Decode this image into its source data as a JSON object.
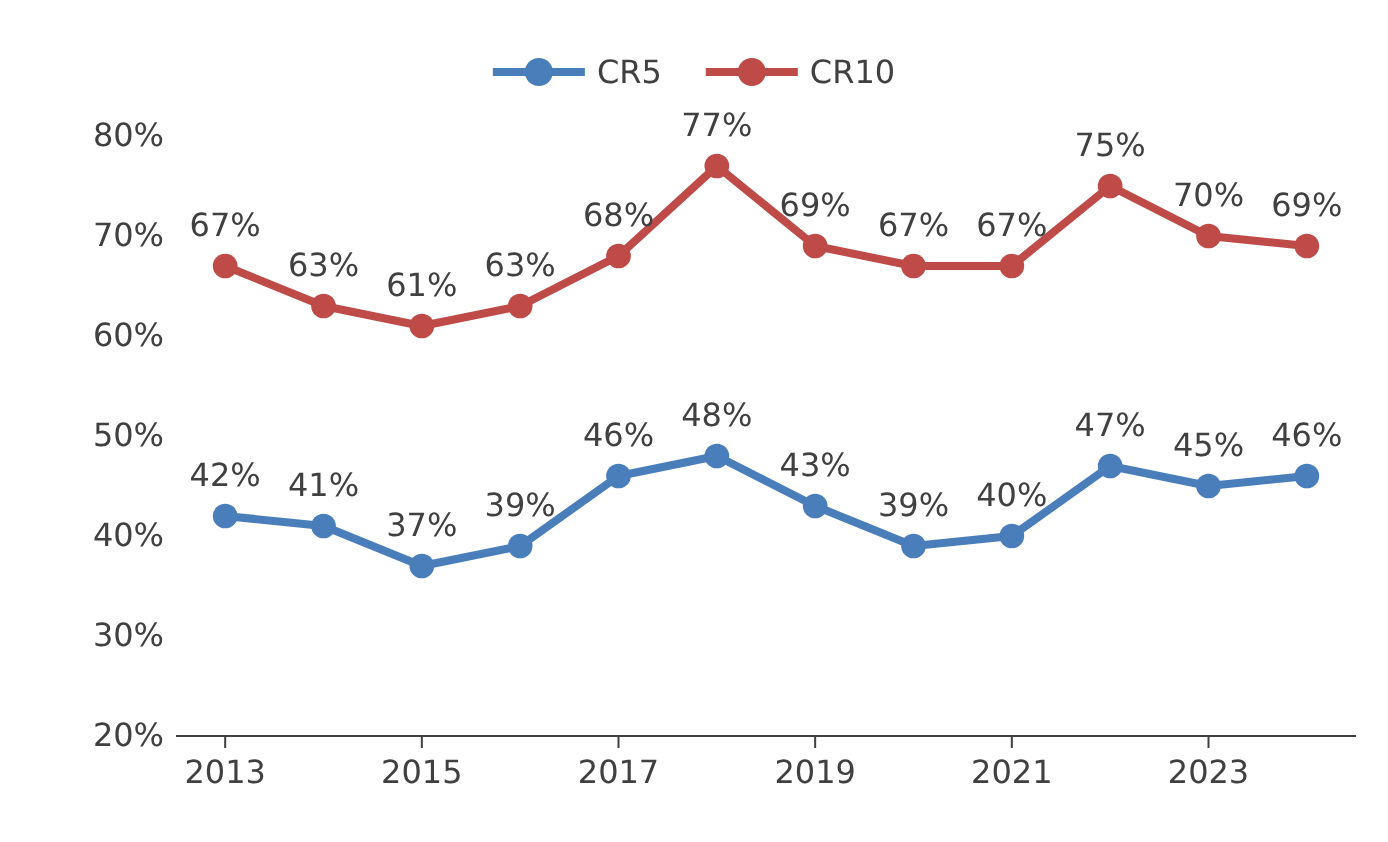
{
  "chart_data": {
    "type": "line",
    "categories": [
      "2013",
      null,
      "2015",
      null,
      "2017",
      null,
      "2019",
      null,
      "2021",
      null,
      "2023",
      null
    ],
    "series": [
      {
        "name": "CR5",
        "color": "#4a7ebb",
        "values": [
          42,
          41,
          37,
          39,
          46,
          48,
          43,
          39,
          40,
          47,
          45,
          46
        ],
        "value_labels": [
          "42%",
          "41%",
          "37%",
          "39%",
          "46%",
          "48%",
          "43%",
          "39%",
          "40%",
          "47%",
          "45%",
          "46%"
        ]
      },
      {
        "name": "CR10",
        "color": "#be4b48",
        "values": [
          67,
          63,
          61,
          63,
          68,
          77,
          69,
          67,
          67,
          75,
          70,
          69
        ],
        "value_labels": [
          "67%",
          "63%",
          "61%",
          "63%",
          "68%",
          "77%",
          "69%",
          "67%",
          "67%",
          "75%",
          "70%",
          "69%"
        ]
      }
    ],
    "ylim": [
      20,
      80
    ],
    "yticks": [
      {
        "value": 20,
        "label": "20%"
      },
      {
        "value": 30,
        "label": "30%"
      },
      {
        "value": 40,
        "label": "40%"
      },
      {
        "value": 50,
        "label": "50%"
      },
      {
        "value": 60,
        "label": "60%"
      },
      {
        "value": 70,
        "label": "70%"
      },
      {
        "value": 80,
        "label": "80%"
      }
    ],
    "legend": "top",
    "marker": "circle",
    "line_style": "solid",
    "grid": false
  }
}
